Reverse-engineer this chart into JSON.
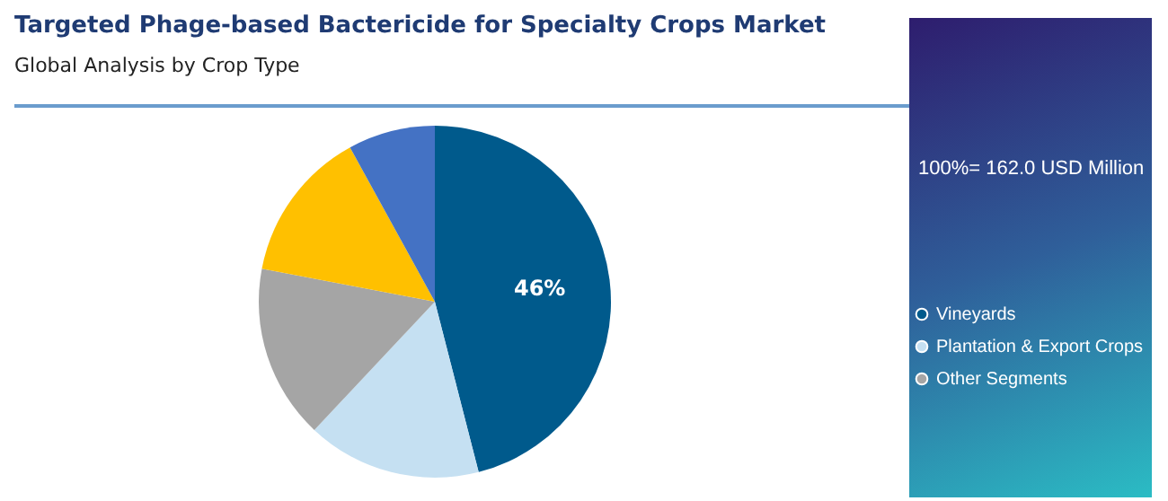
{
  "chart_data": {
    "type": "pie",
    "title": "Targeted Phage-based Bactericide for Specialty Crops Market",
    "subtitle": "Global Analysis by Crop Type",
    "categories": [
      "Vineyards",
      "Plantation & Export Crops",
      "Other Segments",
      null,
      null
    ],
    "values": [
      46,
      16,
      16,
      14,
      8
    ],
    "colors": [
      "#005a8c",
      "#c5e0f2",
      "#a5a5a5",
      "#ffc000",
      "#4472c4"
    ],
    "value_labels": [
      "46%",
      null,
      null,
      null,
      null
    ],
    "annotations": [
      "100%= 162.0 USD Million"
    ],
    "legend": "right"
  }
}
